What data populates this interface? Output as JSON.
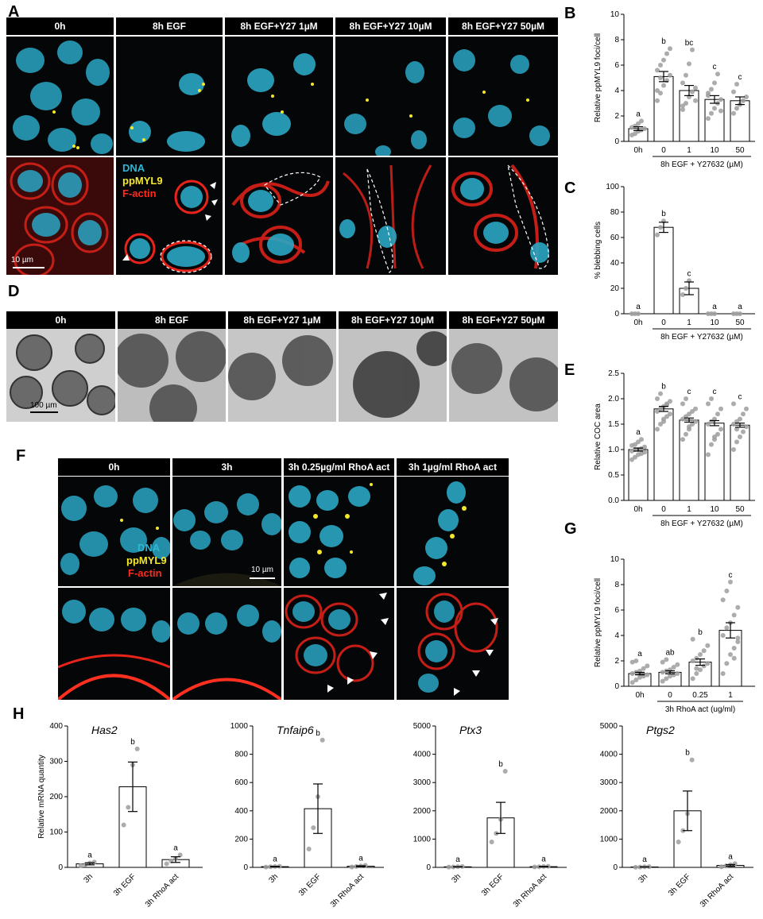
{
  "panel_letters": {
    "A": "A",
    "B": "B",
    "C": "C",
    "D": "D",
    "E": "E",
    "F": "F",
    "G": "G",
    "H": "H"
  },
  "panelA": {
    "headers": [
      "0h",
      "8h EGF",
      "8h EGF+Y27 1µM",
      "8h EGF+Y27 10µM",
      "8h EGF+Y27 50µM"
    ],
    "legend": {
      "dna": "DNA",
      "ppmyl9": "ppMYL9",
      "factin": "F-actin"
    },
    "scale": "10 µm"
  },
  "panelD": {
    "headers": [
      "0h",
      "8h EGF",
      "8h EGF+Y27 1µM",
      "8h EGF+Y27 10µM",
      "8h EGF+Y27 50µM"
    ],
    "scale": "100 µm"
  },
  "panelF": {
    "headers": [
      "0h",
      "3h",
      "3h 0.25µg/ml RhoA act",
      "3h 1µg/ml RhoA act"
    ],
    "legend": {
      "dna": "DNA",
      "ppmyl9": "ppMYL9",
      "factin": "F-actin"
    },
    "scale": "10 µm"
  },
  "colors": {
    "dna": "#2fb6d4",
    "ppmyl9": "#f5e82a",
    "factin": "#e8231a",
    "point": "#9e9e9e"
  },
  "chart_data": [
    {
      "id": "B",
      "type": "bar",
      "ylabel": "Relative ppMYL9 foci/cell",
      "xlabel": "8h EGF + Y27632 (µM)",
      "group_start": 1,
      "categories": [
        "0h",
        "0",
        "1",
        "10",
        "50"
      ],
      "values": [
        1.0,
        5.1,
        4.0,
        3.3,
        3.2
      ],
      "sem": [
        0.15,
        0.4,
        0.4,
        0.3,
        0.3
      ],
      "letters": [
        "a",
        "b",
        "bc",
        "c",
        "c"
      ],
      "ylim": [
        0,
        10
      ],
      "yticks": [
        0,
        2,
        4,
        6,
        8,
        10
      ],
      "points": [
        [
          0.5,
          0.6,
          0.8,
          0.9,
          1.0,
          1.1,
          1.2,
          1.4,
          1.6
        ],
        [
          3.2,
          3.8,
          4.4,
          4.8,
          5.2,
          5.6,
          6.0,
          6.4,
          6.9,
          7.3,
          4.0,
          5.0
        ],
        [
          2.5,
          3.0,
          3.5,
          3.9,
          4.2,
          4.6,
          5.2,
          6.1,
          7.2,
          3.2,
          2.8
        ],
        [
          1.8,
          2.2,
          2.6,
          3.0,
          3.3,
          3.6,
          4.1,
          4.6,
          5.3,
          2.4,
          3.8
        ],
        [
          2.2,
          2.6,
          2.9,
          3.2,
          3.5,
          3.9,
          4.5
        ]
      ]
    },
    {
      "id": "C",
      "type": "bar",
      "ylabel": "% blebbing cells",
      "xlabel": "8h EGF + Y27632 (µM)",
      "group_start": 1,
      "categories": [
        "0h",
        "0",
        "1",
        "10",
        "50"
      ],
      "values": [
        0,
        68,
        20,
        0,
        0
      ],
      "sem": [
        0,
        4,
        5,
        0,
        0
      ],
      "letters": [
        "a",
        "b",
        "c",
        "a",
        "a"
      ],
      "ylim": [
        0,
        100
      ],
      "yticks": [
        0,
        20,
        40,
        60,
        80,
        100
      ],
      "points": [
        [
          0,
          0,
          0
        ],
        [
          62,
          68,
          73
        ],
        [
          15,
          20,
          26
        ],
        [
          0,
          0,
          0
        ],
        [
          0,
          0,
          0
        ]
      ]
    },
    {
      "id": "E",
      "type": "bar",
      "ylabel": "Relative COC area",
      "xlabel": "8h EGF + Y27632 (µM)",
      "group_start": 1,
      "categories": [
        "0h",
        "0",
        "1",
        "10",
        "50"
      ],
      "values": [
        1.0,
        1.8,
        1.58,
        1.52,
        1.48
      ],
      "sem": [
        0.03,
        0.05,
        0.04,
        0.05,
        0.04
      ],
      "letters": [
        "a",
        "b",
        "c",
        "c",
        "c"
      ],
      "ylim": [
        0,
        2.5
      ],
      "yticks": [
        0.0,
        0.5,
        1.0,
        1.5,
        2.0,
        2.5
      ],
      "points": [
        [
          0.8,
          0.85,
          0.9,
          0.92,
          0.95,
          0.97,
          1.0,
          1.0,
          1.02,
          1.05,
          1.08,
          1.1,
          1.15,
          1.2
        ],
        [
          1.4,
          1.5,
          1.6,
          1.65,
          1.7,
          1.75,
          1.8,
          1.85,
          1.9,
          1.95,
          2.0,
          2.1,
          1.55,
          1.88
        ],
        [
          1.2,
          1.3,
          1.4,
          1.5,
          1.55,
          1.6,
          1.65,
          1.7,
          1.75,
          1.8,
          1.9,
          2.0,
          1.45
        ],
        [
          0.9,
          1.1,
          1.2,
          1.3,
          1.4,
          1.5,
          1.55,
          1.6,
          1.7,
          1.8,
          1.9,
          2.0,
          1.25
        ],
        [
          1.0,
          1.15,
          1.25,
          1.35,
          1.45,
          1.5,
          1.55,
          1.6,
          1.7,
          1.8,
          1.9,
          1.4
        ]
      ]
    },
    {
      "id": "G",
      "type": "bar",
      "ylabel": "Relative ppMYL9 foci/cell",
      "xlabel": "3h RhoA act (ug/ml)",
      "group_start": 1,
      "categories": [
        "0h",
        "0",
        "0.25",
        "1"
      ],
      "values": [
        1.0,
        1.1,
        1.9,
        4.4
      ],
      "sem": [
        0.1,
        0.12,
        0.25,
        0.6
      ],
      "letters": [
        "a",
        "ab",
        "b",
        "c"
      ],
      "ylim": [
        0,
        10
      ],
      "yticks": [
        0,
        2,
        4,
        6,
        8,
        10
      ],
      "points": [
        [
          0.3,
          0.5,
          0.7,
          0.8,
          0.9,
          1.0,
          1.1,
          1.2,
          1.4,
          1.6,
          1.9,
          2.0
        ],
        [
          0.4,
          0.6,
          0.8,
          0.9,
          1.0,
          1.1,
          1.2,
          1.3,
          1.5,
          1.7,
          1.9,
          2.1
        ],
        [
          0.6,
          1.0,
          1.3,
          1.6,
          1.8,
          2.0,
          2.2,
          2.5,
          2.8,
          3.2,
          3.7,
          1.4
        ],
        [
          1.0,
          1.8,
          2.5,
          3.0,
          3.5,
          4.0,
          4.6,
          5.0,
          5.6,
          6.2,
          6.8,
          7.5,
          8.2,
          2.2,
          3.8
        ]
      ]
    },
    {
      "id": "H1",
      "type": "bar",
      "title": "Has2",
      "ylabel": "Relative mRNA quantity",
      "xlabel": "",
      "categories": [
        "3h",
        "3h EGF",
        "3h RhoA act"
      ],
      "values": [
        10,
        228,
        22
      ],
      "sem": [
        3,
        70,
        8
      ],
      "letters": [
        "a",
        "b",
        "a"
      ],
      "ylim": [
        0,
        400
      ],
      "yticks": [
        0,
        100,
        200,
        300,
        400
      ],
      "points": [
        [
          5,
          8,
          12,
          15
        ],
        [
          120,
          170,
          290,
          335
        ],
        [
          10,
          18,
          25,
          35
        ]
      ]
    },
    {
      "id": "H2",
      "type": "bar",
      "title": "Tnfaip6",
      "ylabel": "",
      "xlabel": "",
      "categories": [
        "3h",
        "3h EGF",
        "3h RhoA act"
      ],
      "values": [
        5,
        415,
        8
      ],
      "sem": [
        2,
        175,
        3
      ],
      "letters": [
        "a",
        "b",
        "a"
      ],
      "ylim": [
        0,
        1000
      ],
      "yticks": [
        0,
        200,
        400,
        600,
        800,
        1000
      ],
      "points": [
        [
          2,
          4,
          6,
          8
        ],
        [
          130,
          280,
          500,
          900
        ],
        [
          3,
          6,
          10,
          14
        ]
      ]
    },
    {
      "id": "H3",
      "type": "bar",
      "title": "Ptx3",
      "ylabel": "",
      "xlabel": "",
      "categories": [
        "3h",
        "3h EGF",
        "3h RhoA act"
      ],
      "values": [
        20,
        1750,
        25
      ],
      "sem": [
        5,
        550,
        8
      ],
      "letters": [
        "a",
        "b",
        "a"
      ],
      "ylim": [
        0,
        5000
      ],
      "yticks": [
        0,
        1000,
        2000,
        3000,
        4000,
        5000
      ],
      "points": [
        [
          10,
          15,
          25,
          30
        ],
        [
          900,
          1200,
          1700,
          3400
        ],
        [
          15,
          20,
          30,
          40
        ]
      ]
    },
    {
      "id": "H4",
      "type": "bar",
      "title": "Ptgs2",
      "ylabel": "",
      "xlabel": "",
      "categories": [
        "3h",
        "3h EGF",
        "3h RhoA act"
      ],
      "values": [
        15,
        2000,
        70
      ],
      "sem": [
        5,
        700,
        30
      ],
      "letters": [
        "a",
        "b",
        "a"
      ],
      "ylim": [
        0,
        5000
      ],
      "yticks": [
        0,
        1000,
        2000,
        3000,
        4000,
        5000
      ],
      "points": [
        [
          5,
          10,
          20,
          25
        ],
        [
          900,
          1300,
          1900,
          3800
        ],
        [
          20,
          50,
          90,
          130
        ]
      ]
    }
  ]
}
